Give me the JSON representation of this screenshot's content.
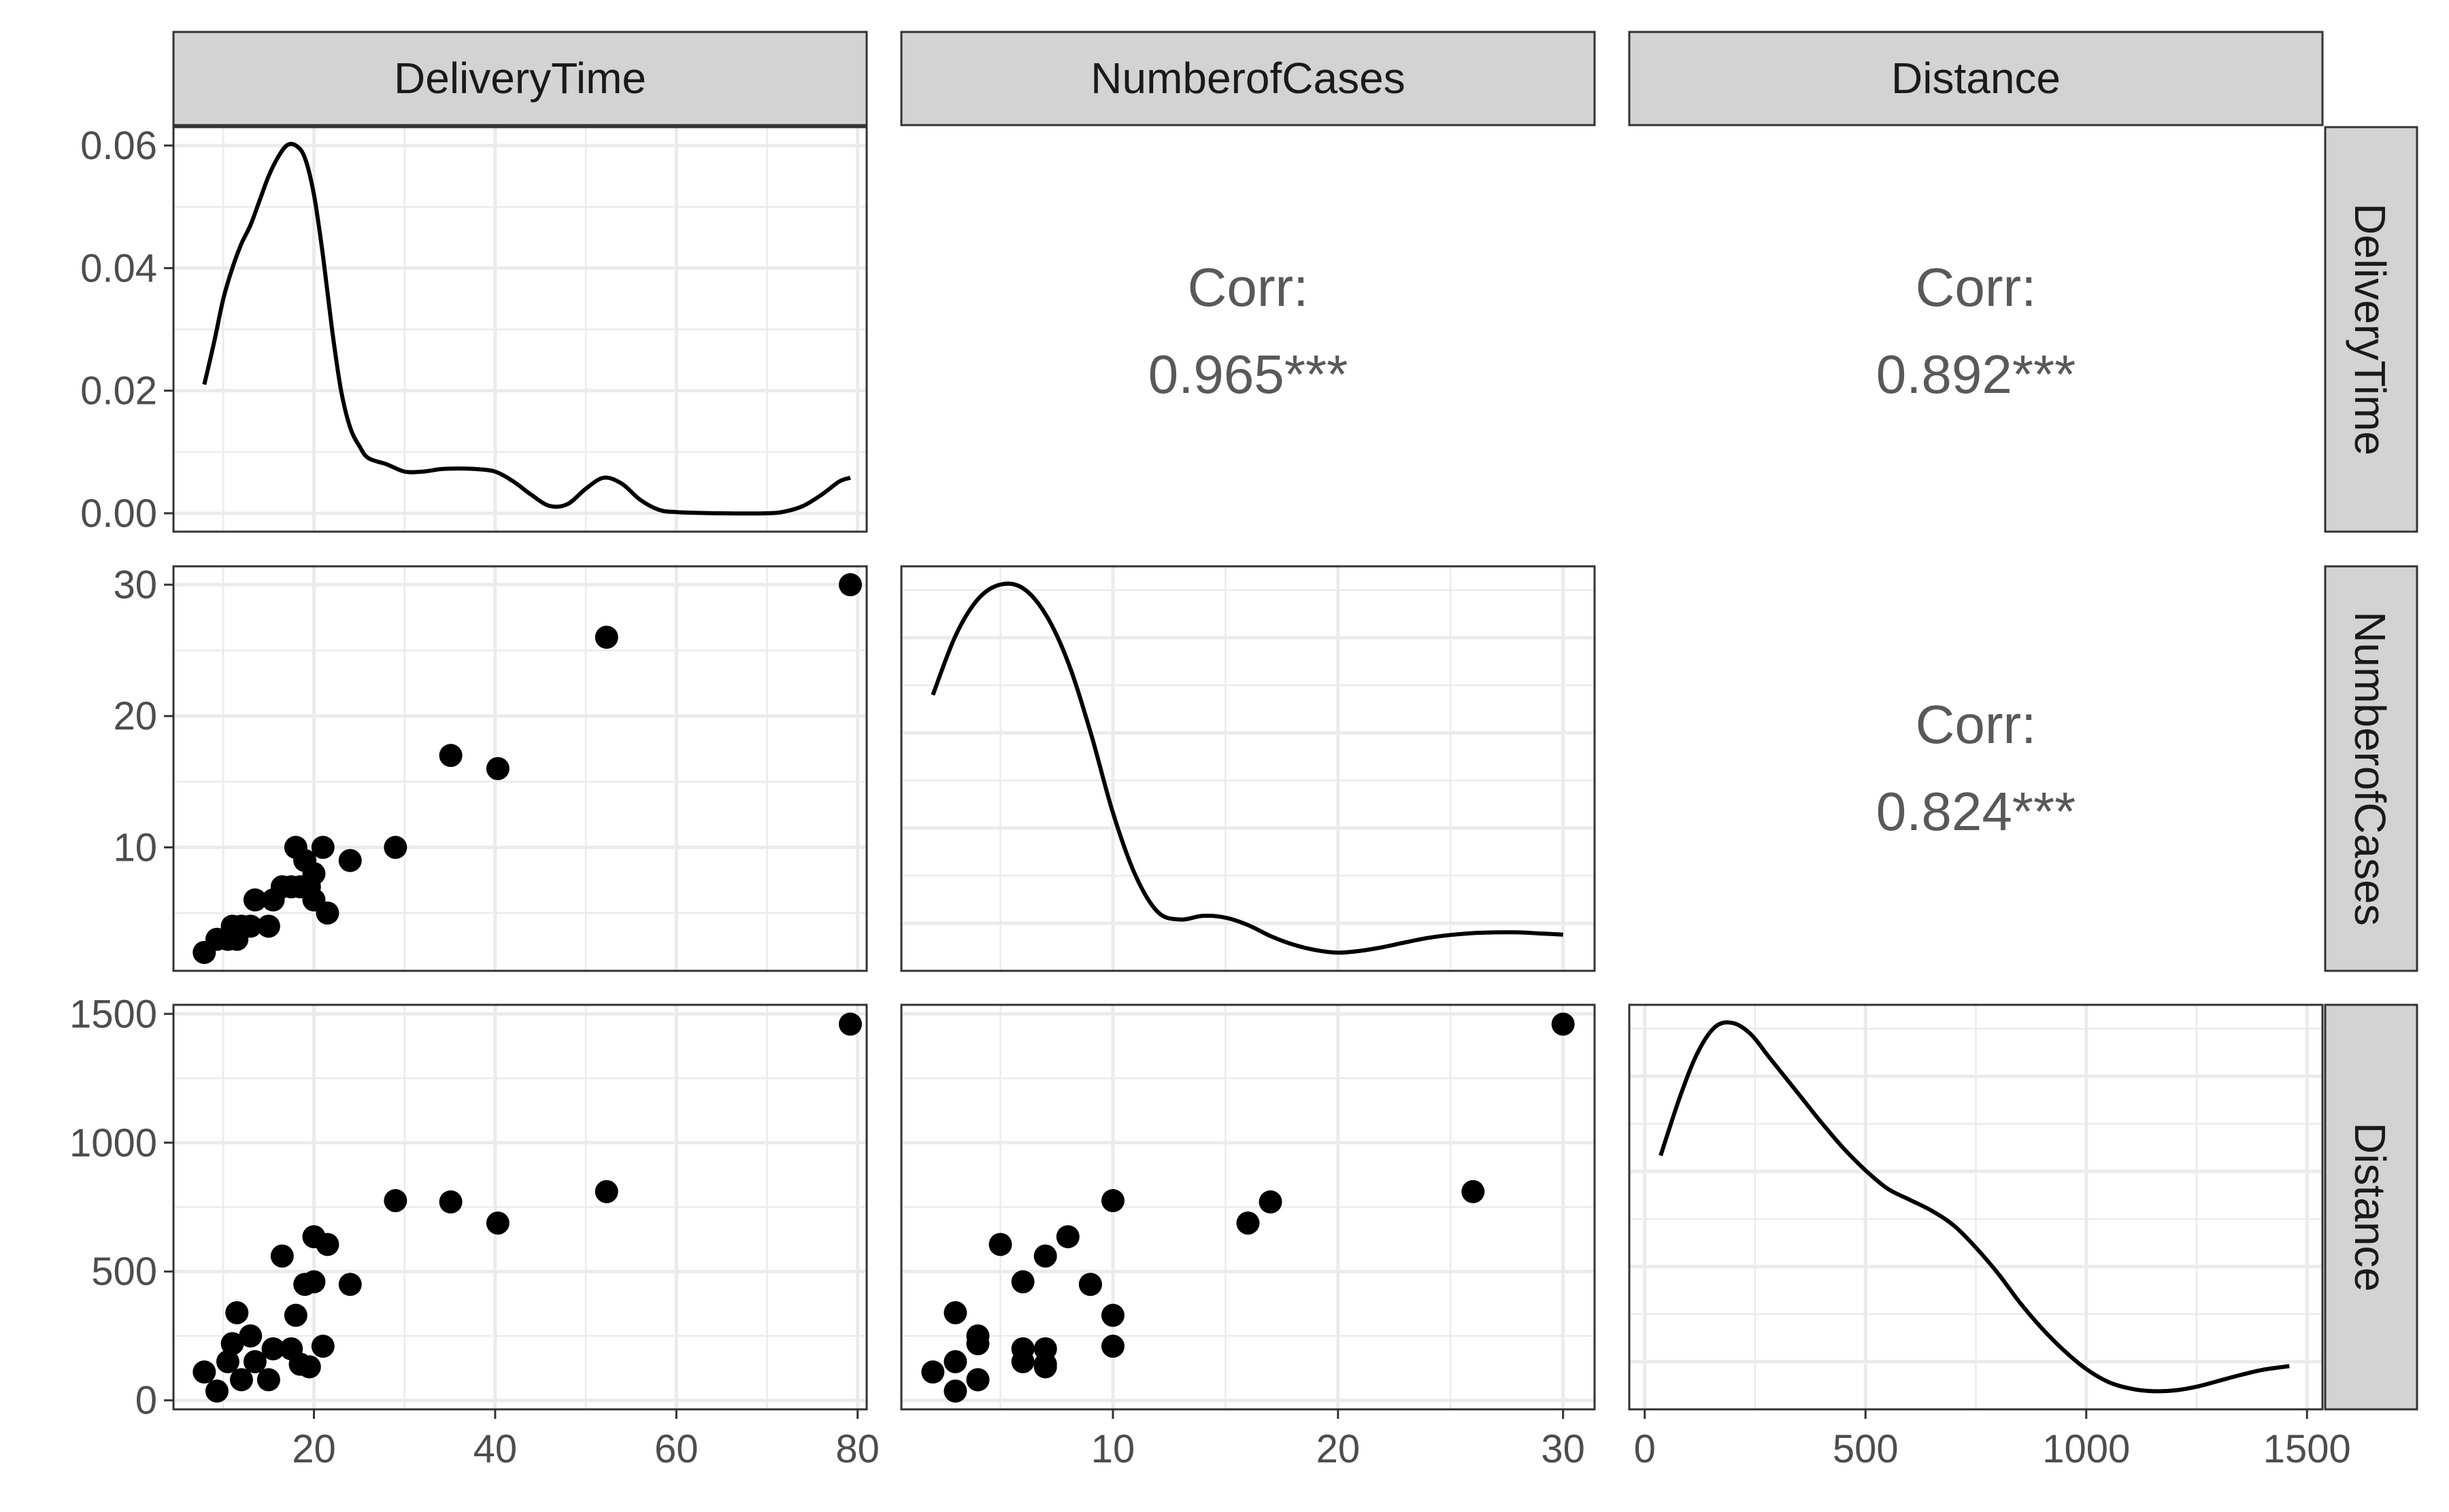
{
  "chart_data": {
    "type": "scatter-matrix",
    "variables": [
      "DeliveryTime",
      "NumberofCases",
      "Distance"
    ],
    "colors": {
      "strip": "#d3d3d3",
      "grid": "#ebebeb",
      "points": "#000000",
      "border": "#333333",
      "corr_text": "#595959"
    },
    "axes": {
      "DeliveryTime": {
        "ticks": [
          20,
          40,
          60,
          80
        ],
        "tick_labels": [
          "20",
          "40",
          "60",
          "80"
        ],
        "range": [
          4.5,
          81
        ]
      },
      "NumberofCases": {
        "ticks": [
          10,
          20,
          30
        ],
        "tick_labels": [
          "10",
          "20",
          "30"
        ],
        "range": [
          0.6,
          31.4
        ]
      },
      "Distance": {
        "ticks": [
          0,
          500,
          1000,
          1500
        ],
        "tick_labels": [
          "0",
          "500",
          "1000",
          "1500"
        ],
        "range": [
          -35,
          1535
        ]
      },
      "density_y": {
        "ticks": [
          0,
          0.02,
          0.04,
          0.06
        ],
        "tick_labels": [
          "0.00",
          "0.02",
          "0.04",
          "0.06"
        ],
        "range": [
          -0.003,
          0.063
        ]
      }
    },
    "correlations": [
      {
        "row": "DeliveryTime",
        "col": "NumberofCases",
        "label": "Corr:",
        "value": "0.965***"
      },
      {
        "row": "DeliveryTime",
        "col": "Distance",
        "label": "Corr:",
        "value": "0.892***"
      },
      {
        "row": "NumberofCases",
        "col": "Distance",
        "label": "Corr:",
        "value": "0.824***"
      }
    ],
    "observations": [
      {
        "DeliveryTime": 7.9,
        "NumberofCases": 2,
        "Distance": 110
      },
      {
        "DeliveryTime": 9.3,
        "NumberofCases": 3,
        "Distance": 36
      },
      {
        "DeliveryTime": 10.5,
        "NumberofCases": 3,
        "Distance": 150
      },
      {
        "DeliveryTime": 11.0,
        "NumberofCases": 4,
        "Distance": 220
      },
      {
        "DeliveryTime": 11.5,
        "NumberofCases": 3,
        "Distance": 340
      },
      {
        "DeliveryTime": 12.0,
        "NumberofCases": 4,
        "Distance": 80
      },
      {
        "DeliveryTime": 13.0,
        "NumberofCases": 4,
        "Distance": 250
      },
      {
        "DeliveryTime": 13.5,
        "NumberofCases": 6,
        "Distance": 150
      },
      {
        "DeliveryTime": 15.0,
        "NumberofCases": 4,
        "Distance": 80
      },
      {
        "DeliveryTime": 15.5,
        "NumberofCases": 6,
        "Distance": 200
      },
      {
        "DeliveryTime": 16.5,
        "NumberofCases": 7,
        "Distance": 560
      },
      {
        "DeliveryTime": 17.5,
        "NumberofCases": 7,
        "Distance": 200
      },
      {
        "DeliveryTime": 18.0,
        "NumberofCases": 10,
        "Distance": 330
      },
      {
        "DeliveryTime": 18.5,
        "NumberofCases": 7,
        "Distance": 140
      },
      {
        "DeliveryTime": 19.0,
        "NumberofCases": 9,
        "Distance": 450
      },
      {
        "DeliveryTime": 19.5,
        "NumberofCases": 7,
        "Distance": 130
      },
      {
        "DeliveryTime": 20.0,
        "NumberofCases": 8,
        "Distance": 635
      },
      {
        "DeliveryTime": 20.0,
        "NumberofCases": 6,
        "Distance": 460
      },
      {
        "DeliveryTime": 21.0,
        "NumberofCases": 10,
        "Distance": 210
      },
      {
        "DeliveryTime": 21.5,
        "NumberofCases": 5,
        "Distance": 605
      },
      {
        "DeliveryTime": 24.0,
        "NumberofCases": 9,
        "Distance": 450
      },
      {
        "DeliveryTime": 29.0,
        "NumberofCases": 10,
        "Distance": 775
      },
      {
        "DeliveryTime": 35.1,
        "NumberofCases": 17,
        "Distance": 770
      },
      {
        "DeliveryTime": 40.3,
        "NumberofCases": 16,
        "Distance": 688
      },
      {
        "DeliveryTime": 52.3,
        "NumberofCases": 26,
        "Distance": 810
      },
      {
        "DeliveryTime": 79.2,
        "NumberofCases": 30,
        "Distance": 1460
      }
    ],
    "densities": {
      "DeliveryTime": {
        "x": [
          7.9,
          9,
          10,
          11,
          12,
          13,
          14,
          15,
          16,
          17,
          18,
          19,
          20,
          21,
          22,
          23,
          24,
          25,
          26,
          28,
          30,
          32,
          34,
          36,
          38,
          40,
          42,
          44,
          46,
          48,
          50,
          52,
          54,
          56,
          58,
          60,
          65,
          70,
          72,
          74,
          76,
          78,
          79.2
        ],
        "y": [
          0.021,
          0.028,
          0.035,
          0.04,
          0.044,
          0.047,
          0.051,
          0.055,
          0.058,
          0.06,
          0.06,
          0.058,
          0.052,
          0.042,
          0.03,
          0.02,
          0.014,
          0.011,
          0.009,
          0.008,
          0.0068,
          0.0068,
          0.0072,
          0.0073,
          0.0072,
          0.0068,
          0.0052,
          0.003,
          0.0012,
          0.0015,
          0.004,
          0.0058,
          0.0048,
          0.0022,
          0.0006,
          0.0002,
          0.0,
          0.0,
          0.0003,
          0.0012,
          0.003,
          0.0052,
          0.0058
        ]
      },
      "NumberofCases": {
        "x": [
          2,
          3,
          4,
          5,
          6,
          7,
          8,
          9,
          10,
          11,
          12,
          13,
          14,
          15,
          16,
          17,
          18,
          19,
          20,
          21,
          22,
          23,
          24,
          25,
          26,
          27,
          28,
          29,
          30
        ],
        "y": [
          0.7,
          0.86,
          0.96,
          1.0,
          0.99,
          0.92,
          0.79,
          0.6,
          0.38,
          0.21,
          0.11,
          0.09,
          0.1,
          0.095,
          0.075,
          0.045,
          0.022,
          0.007,
          0.0,
          0.005,
          0.015,
          0.028,
          0.04,
          0.048,
          0.053,
          0.055,
          0.055,
          0.052,
          0.049
        ]
      },
      "Distance": {
        "x": [
          36,
          80,
          120,
          160,
          200,
          240,
          280,
          320,
          360,
          400,
          450,
          500,
          550,
          600,
          650,
          700,
          750,
          800,
          850,
          900,
          950,
          1000,
          1050,
          1100,
          1150,
          1200,
          1250,
          1300,
          1350,
          1400,
          1460
        ],
        "y": [
          0.64,
          0.8,
          0.92,
          0.99,
          1.0,
          0.97,
          0.91,
          0.85,
          0.79,
          0.73,
          0.66,
          0.6,
          0.55,
          0.52,
          0.49,
          0.45,
          0.39,
          0.32,
          0.24,
          0.17,
          0.11,
          0.06,
          0.025,
          0.007,
          0.0,
          0.002,
          0.012,
          0.028,
          0.044,
          0.058,
          0.068
        ]
      }
    }
  }
}
